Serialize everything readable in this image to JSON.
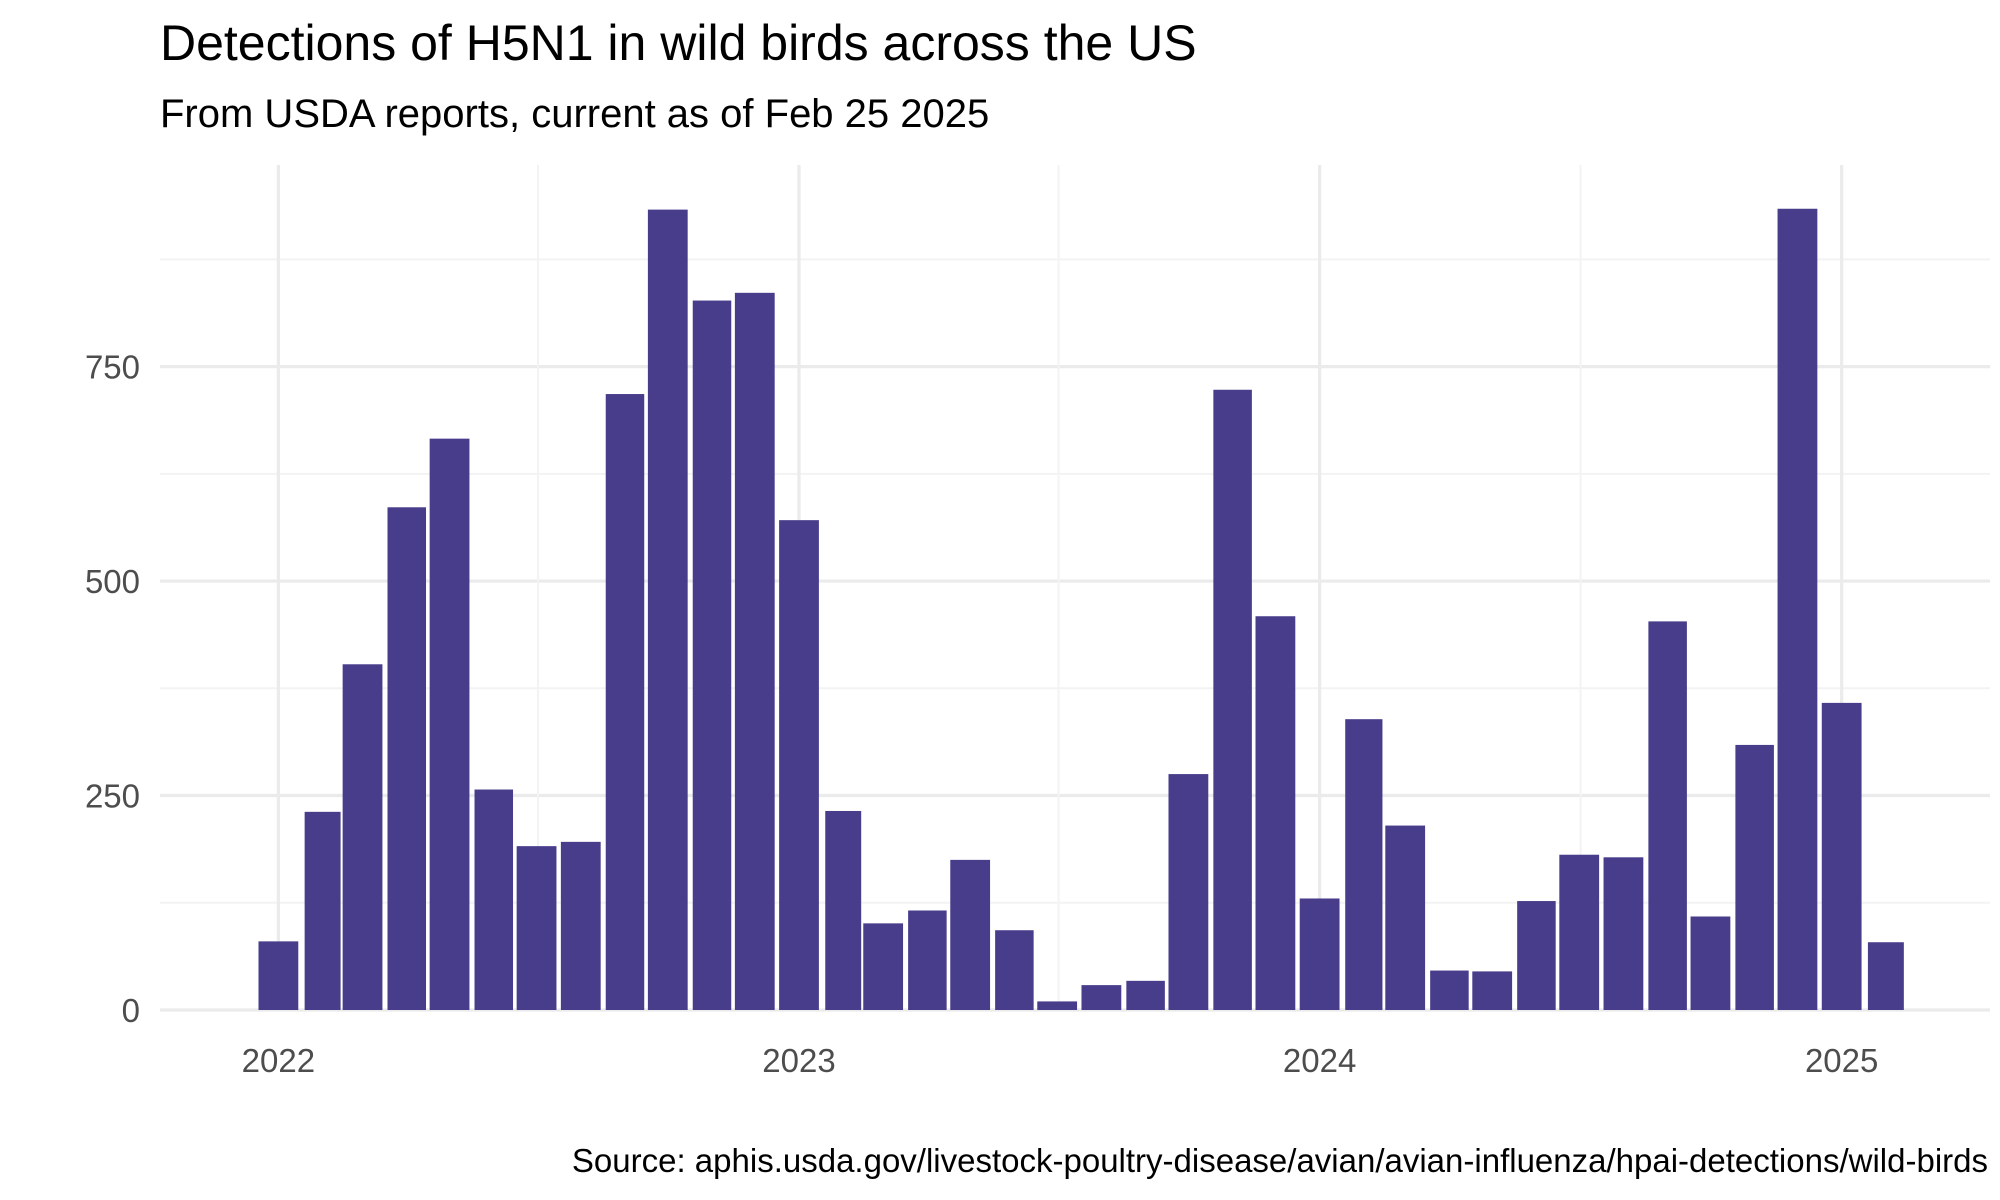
{
  "chart_data": {
    "type": "bar",
    "title": "Detections of H5N1 in wild birds across the US",
    "subtitle": "From USDA reports, current as of Feb 25 2025",
    "caption": "Source: aphis.usda.gov/livestock-poultry-disease/avian/avian-influenza/hpai-detections/wild-birds",
    "xlabel": "",
    "ylabel": "",
    "bar_color": "#483D8B",
    "grid": true,
    "xlim": [
      "2021-10-10",
      "2025-04-15"
    ],
    "ylim": [
      0,
      985
    ],
    "yticks": [
      0,
      250,
      500,
      750
    ],
    "xticks": [
      {
        "label": "2022",
        "date": "2022-01-01"
      },
      {
        "label": "2023",
        "date": "2023-01-01"
      },
      {
        "label": "2024",
        "date": "2024-01-01"
      },
      {
        "label": "2025",
        "date": "2025-01-01"
      }
    ],
    "dates": [
      "2022-01",
      "2022-02",
      "2022-03",
      "2022-04",
      "2022-05",
      "2022-06",
      "2022-07",
      "2022-08",
      "2022-09",
      "2022-10",
      "2022-11",
      "2022-12",
      "2023-01",
      "2023-02",
      "2023-03",
      "2023-04",
      "2023-05",
      "2023-06",
      "2023-07",
      "2023-08",
      "2023-09",
      "2023-10",
      "2023-11",
      "2023-12",
      "2024-01",
      "2024-02",
      "2024-03",
      "2024-04",
      "2024-05",
      "2024-06",
      "2024-07",
      "2024-08",
      "2024-09",
      "2024-10",
      "2024-11",
      "2024-12",
      "2025-01",
      "2025-02"
    ],
    "values": [
      80,
      231,
      403,
      586,
      666,
      257,
      191,
      196,
      718,
      933,
      827,
      836,
      571,
      232,
      101,
      116,
      175,
      93,
      10,
      29,
      34,
      275,
      723,
      459,
      130,
      339,
      215,
      46,
      45,
      127,
      181,
      178,
      453,
      109,
      309,
      934,
      358,
      79
    ]
  }
}
